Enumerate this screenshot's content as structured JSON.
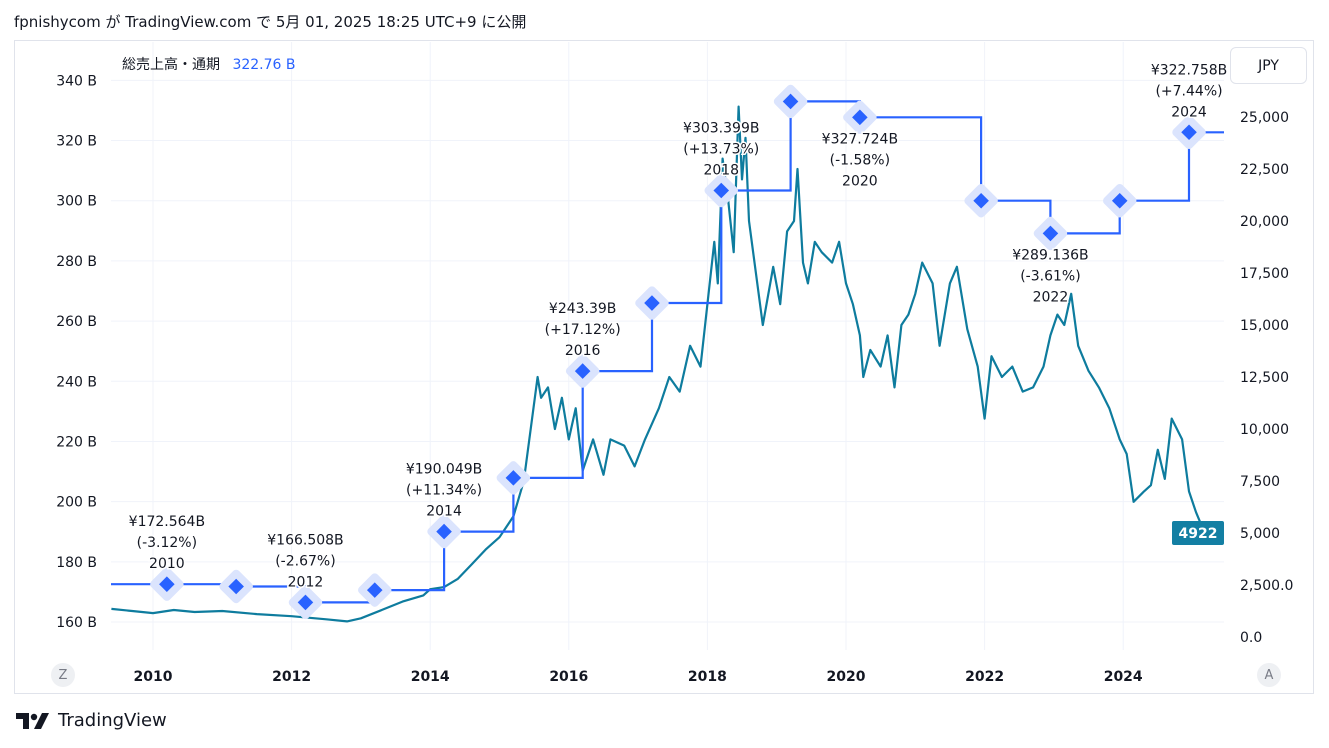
{
  "header": {
    "text": "fpnishycom が TradingView.com で 5月 01, 2025 18:25 UTC+9 に公開"
  },
  "legend": {
    "label": "総売上高・通期",
    "value": "322.76 B"
  },
  "currency_button": "JPY",
  "corner_left": "Z",
  "corner_right": "A",
  "footer": {
    "brand": "TradingView"
  },
  "colors": {
    "accent": "#2962ff",
    "price": "#0e7c9e",
    "price_badge": "#137fa3",
    "diamond_halo": "#dbe4fd",
    "grid": "#f0f3fa"
  },
  "chart_data": {
    "type": "line",
    "x_ticks": [
      "2010",
      "2012",
      "2014",
      "2016",
      "2018",
      "2020",
      "2022",
      "2024"
    ],
    "left_axis": {
      "ticks": [
        "160 B",
        "180 B",
        "200 B",
        "220 B",
        "240 B",
        "260 B",
        "280 B",
        "300 B",
        "320 B",
        "340 B"
      ],
      "ylim": [
        155,
        345
      ]
    },
    "right_axis": {
      "ticks": [
        "0.0",
        "2,500.0",
        "5,000",
        "7,500",
        "10,000",
        "12,500",
        "15,000",
        "17,500",
        "20,000",
        "22,500",
        "25,000"
      ],
      "ylim": [
        -400,
        27000
      ]
    },
    "revenue": {
      "name": "総売上高・通期",
      "points": [
        {
          "x": 2010.2,
          "v": 172.564,
          "label": "¥172.564B",
          "change": "(-3.12%)",
          "year": "2010"
        },
        {
          "x": 2011.2,
          "v": 171.8
        },
        {
          "x": 2012.2,
          "v": 166.508,
          "label": "¥166.508B",
          "change": "(-2.67%)",
          "year": "2012"
        },
        {
          "x": 2013.2,
          "v": 170.6
        },
        {
          "x": 2014.2,
          "v": 190.049,
          "label": "¥190.049B",
          "change": "(+11.34%)",
          "year": "2014"
        },
        {
          "x": 2015.2,
          "v": 207.9
        },
        {
          "x": 2016.2,
          "v": 243.39,
          "label": "¥243.39B",
          "change": "(+17.12%)",
          "year": "2016"
        },
        {
          "x": 2017.2,
          "v": 266.0
        },
        {
          "x": 2018.2,
          "v": 303.399,
          "label": "¥303.399B",
          "change": "(+13.73%)",
          "year": "2018"
        },
        {
          "x": 2019.2,
          "v": 333.0
        },
        {
          "x": 2020.2,
          "v": 327.724,
          "label": "¥327.724B",
          "change": "(-1.58%)",
          "year": "2020"
        },
        {
          "x": 2021.95,
          "v": 300.0
        },
        {
          "x": 2022.95,
          "v": 289.136,
          "label": "¥289.136B",
          "change": "(-3.61%)",
          "year": "2022"
        },
        {
          "x": 2023.95,
          "v": 300.0
        },
        {
          "x": 2024.95,
          "v": 322.758,
          "label": "¥322.758B",
          "change": "(+7.44%)",
          "year": "2024"
        }
      ]
    },
    "price": {
      "last": "4922",
      "points": [
        [
          2009.4,
          1350
        ],
        [
          2009.7,
          1250
        ],
        [
          2010.0,
          1150
        ],
        [
          2010.3,
          1300
        ],
        [
          2010.6,
          1200
        ],
        [
          2011.0,
          1250
        ],
        [
          2011.5,
          1100
        ],
        [
          2012.0,
          1000
        ],
        [
          2012.5,
          850
        ],
        [
          2012.8,
          750
        ],
        [
          2013.0,
          900
        ],
        [
          2013.3,
          1300
        ],
        [
          2013.6,
          1700
        ],
        [
          2013.9,
          2000
        ],
        [
          2014.0,
          2300
        ],
        [
          2014.2,
          2400
        ],
        [
          2014.4,
          2800
        ],
        [
          2014.6,
          3500
        ],
        [
          2014.8,
          4200
        ],
        [
          2015.0,
          4800
        ],
        [
          2015.2,
          5800
        ],
        [
          2015.35,
          7500
        ],
        [
          2015.45,
          10000
        ],
        [
          2015.55,
          12500
        ],
        [
          2015.6,
          11500
        ],
        [
          2015.7,
          12000
        ],
        [
          2015.8,
          10000
        ],
        [
          2015.9,
          11500
        ],
        [
          2016.0,
          9500
        ],
        [
          2016.1,
          11000
        ],
        [
          2016.2,
          8000
        ],
        [
          2016.35,
          9500
        ],
        [
          2016.5,
          7800
        ],
        [
          2016.6,
          9500
        ],
        [
          2016.8,
          9200
        ],
        [
          2016.95,
          8200
        ],
        [
          2017.1,
          9500
        ],
        [
          2017.3,
          11000
        ],
        [
          2017.45,
          12500
        ],
        [
          2017.6,
          11800
        ],
        [
          2017.75,
          14000
        ],
        [
          2017.9,
          13000
        ],
        [
          2018.0,
          16000
        ],
        [
          2018.1,
          19000
        ],
        [
          2018.15,
          17000
        ],
        [
          2018.22,
          23000
        ],
        [
          2018.3,
          21000
        ],
        [
          2018.38,
          18500
        ],
        [
          2018.45,
          25500
        ],
        [
          2018.5,
          22000
        ],
        [
          2018.55,
          24000
        ],
        [
          2018.6,
          20000
        ],
        [
          2018.7,
          17500
        ],
        [
          2018.8,
          15000
        ],
        [
          2018.95,
          17800
        ],
        [
          2019.05,
          16000
        ],
        [
          2019.15,
          19500
        ],
        [
          2019.25,
          20000
        ],
        [
          2019.3,
          22500
        ],
        [
          2019.38,
          18000
        ],
        [
          2019.45,
          17000
        ],
        [
          2019.55,
          19000
        ],
        [
          2019.65,
          18500
        ],
        [
          2019.8,
          18000
        ],
        [
          2019.9,
          19000
        ],
        [
          2020.0,
          17000
        ],
        [
          2020.1,
          16000
        ],
        [
          2020.2,
          14500
        ],
        [
          2020.25,
          12500
        ],
        [
          2020.35,
          13800
        ],
        [
          2020.5,
          13000
        ],
        [
          2020.6,
          14500
        ],
        [
          2020.7,
          12000
        ],
        [
          2020.8,
          15000
        ],
        [
          2020.9,
          15500
        ],
        [
          2021.0,
          16500
        ],
        [
          2021.1,
          18000
        ],
        [
          2021.25,
          17000
        ],
        [
          2021.35,
          14000
        ],
        [
          2021.5,
          17000
        ],
        [
          2021.6,
          17800
        ],
        [
          2021.75,
          14800
        ],
        [
          2021.9,
          13000
        ],
        [
          2022.0,
          10500
        ],
        [
          2022.1,
          13500
        ],
        [
          2022.25,
          12500
        ],
        [
          2022.4,
          13000
        ],
        [
          2022.55,
          11800
        ],
        [
          2022.7,
          12000
        ],
        [
          2022.85,
          13000
        ],
        [
          2022.95,
          14500
        ],
        [
          2023.05,
          15500
        ],
        [
          2023.15,
          15000
        ],
        [
          2023.25,
          16500
        ],
        [
          2023.35,
          14000
        ],
        [
          2023.5,
          12800
        ],
        [
          2023.65,
          12000
        ],
        [
          2023.8,
          11000
        ],
        [
          2023.95,
          9500
        ],
        [
          2024.05,
          8800
        ],
        [
          2024.15,
          6500
        ],
        [
          2024.3,
          7000
        ],
        [
          2024.4,
          7300
        ],
        [
          2024.5,
          9000
        ],
        [
          2024.6,
          7600
        ],
        [
          2024.7,
          10500
        ],
        [
          2024.85,
          9500
        ],
        [
          2024.95,
          7000
        ],
        [
          2025.05,
          6000
        ],
        [
          2025.15,
          5200
        ],
        [
          2025.25,
          5000
        ],
        [
          2025.35,
          4922
        ]
      ]
    }
  }
}
